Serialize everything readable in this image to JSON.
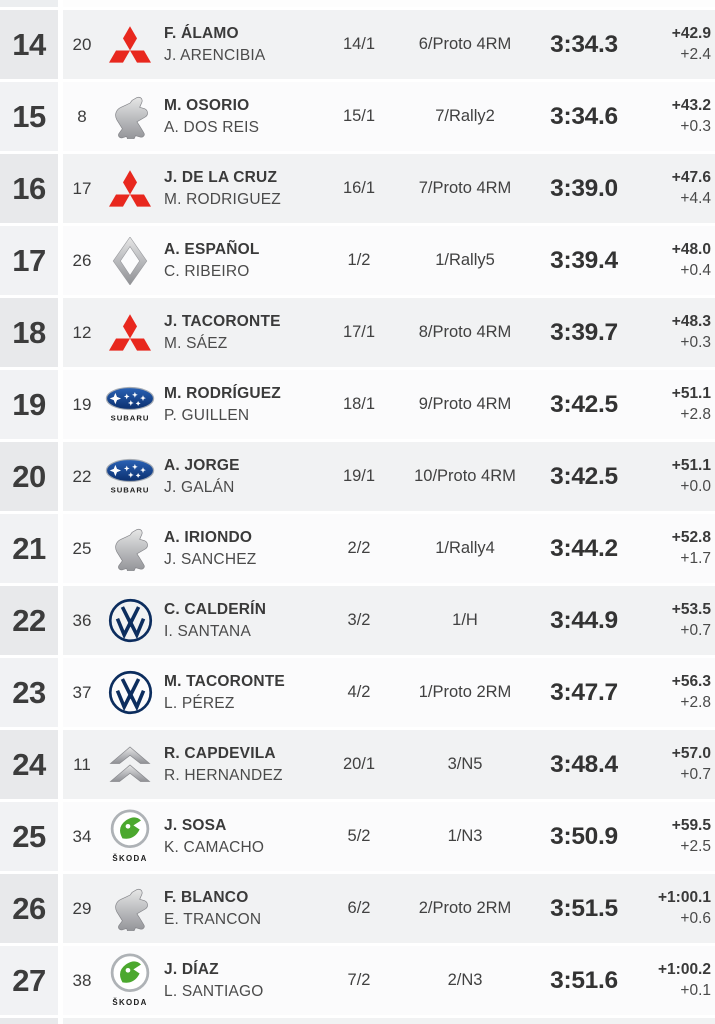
{
  "page": {
    "title": "Rally overall classification rows 14-27"
  },
  "brand_colors": {
    "mitsubishi_red": "#e8281e",
    "subaru_navy_light": "#2a62b5",
    "subaru_navy_dark": "#0b2f6e",
    "vw_navy": "#0c2d5e",
    "skoda_green": "#4ba82e",
    "silver_light": "#dedede",
    "silver_dark": "#8f9094"
  },
  "logo_text": {
    "subaru": "SUBARU",
    "skoda": "ŠKODA"
  },
  "table": {
    "columns": [
      "position",
      "car_number",
      "make",
      "driver",
      "codriver",
      "class_position",
      "group_position",
      "time",
      "gap_total",
      "gap_previous"
    ],
    "rows": [
      {
        "pos": "14",
        "car": "20",
        "make": "mitsubishi",
        "driver": "F. ÁLAMO",
        "codriver": "J. ARENCIBIA",
        "class_pos": "14/1",
        "group_pos": "6/Proto 4RM",
        "time": "3:34.3",
        "gap_total": "+42.9",
        "gap_prev": "+2.4"
      },
      {
        "pos": "15",
        "car": "8",
        "make": "peugeot",
        "driver": "M. OSORIO",
        "codriver": "A. DOS REIS",
        "class_pos": "15/1",
        "group_pos": "7/Rally2",
        "time": "3:34.6",
        "gap_total": "+43.2",
        "gap_prev": "+0.3"
      },
      {
        "pos": "16",
        "car": "17",
        "make": "mitsubishi",
        "driver": "J. DE LA CRUZ",
        "codriver": "M. RODRIGUEZ",
        "class_pos": "16/1",
        "group_pos": "7/Proto 4RM",
        "time": "3:39.0",
        "gap_total": "+47.6",
        "gap_prev": "+4.4"
      },
      {
        "pos": "17",
        "car": "26",
        "make": "renault",
        "driver": "A. ESPAÑOL",
        "codriver": "C. RIBEIRO",
        "class_pos": "1/2",
        "group_pos": "1/Rally5",
        "time": "3:39.4",
        "gap_total": "+48.0",
        "gap_prev": "+0.4"
      },
      {
        "pos": "18",
        "car": "12",
        "make": "mitsubishi",
        "driver": "J. TACORONTE",
        "codriver": "M. SÁEZ",
        "class_pos": "17/1",
        "group_pos": "8/Proto 4RM",
        "time": "3:39.7",
        "gap_total": "+48.3",
        "gap_prev": "+0.3"
      },
      {
        "pos": "19",
        "car": "19",
        "make": "subaru",
        "driver": "M. RODRÍGUEZ",
        "codriver": "P. GUILLEN",
        "class_pos": "18/1",
        "group_pos": "9/Proto 4RM",
        "time": "3:42.5",
        "gap_total": "+51.1",
        "gap_prev": "+2.8"
      },
      {
        "pos": "20",
        "car": "22",
        "make": "subaru",
        "driver": "A. JORGE",
        "codriver": "J. GALÁN",
        "class_pos": "19/1",
        "group_pos": "10/Proto 4RM",
        "time": "3:42.5",
        "gap_total": "+51.1",
        "gap_prev": "+0.0"
      },
      {
        "pos": "21",
        "car": "25",
        "make": "peugeot",
        "driver": "A. IRIONDO",
        "codriver": "J. SANCHEZ",
        "class_pos": "2/2",
        "group_pos": "1/Rally4",
        "time": "3:44.2",
        "gap_total": "+52.8",
        "gap_prev": "+1.7"
      },
      {
        "pos": "22",
        "car": "36",
        "make": "volkswagen",
        "driver": "C. CALDERÍN",
        "codriver": "I. SANTANA",
        "class_pos": "3/2",
        "group_pos": "1/H",
        "time": "3:44.9",
        "gap_total": "+53.5",
        "gap_prev": "+0.7"
      },
      {
        "pos": "23",
        "car": "37",
        "make": "volkswagen",
        "driver": "M. TACORONTE",
        "codriver": "L. PÉREZ",
        "class_pos": "4/2",
        "group_pos": "1/Proto 2RM",
        "time": "3:47.7",
        "gap_total": "+56.3",
        "gap_prev": "+2.8"
      },
      {
        "pos": "24",
        "car": "11",
        "make": "citroen",
        "driver": "R. CAPDEVILA",
        "codriver": "R. HERNANDEZ",
        "class_pos": "20/1",
        "group_pos": "3/N5",
        "time": "3:48.4",
        "gap_total": "+57.0",
        "gap_prev": "+0.7"
      },
      {
        "pos": "25",
        "car": "34",
        "make": "skoda",
        "driver": "J. SOSA",
        "codriver": "K. CAMACHO",
        "class_pos": "5/2",
        "group_pos": "1/N3",
        "time": "3:50.9",
        "gap_total": "+59.5",
        "gap_prev": "+2.5"
      },
      {
        "pos": "26",
        "car": "29",
        "make": "peugeot",
        "driver": "F. BLANCO",
        "codriver": "E. TRANCON",
        "class_pos": "6/2",
        "group_pos": "2/Proto 2RM",
        "time": "3:51.5",
        "gap_total": "+1:00.1",
        "gap_prev": "+0.6"
      },
      {
        "pos": "27",
        "car": "38",
        "make": "skoda",
        "driver": "J. DÍAZ",
        "codriver": "L. SANTIAGO",
        "class_pos": "7/2",
        "group_pos": "2/N3",
        "time": "3:51.6",
        "gap_total": "+1:00.2",
        "gap_prev": "+0.1"
      }
    ]
  }
}
